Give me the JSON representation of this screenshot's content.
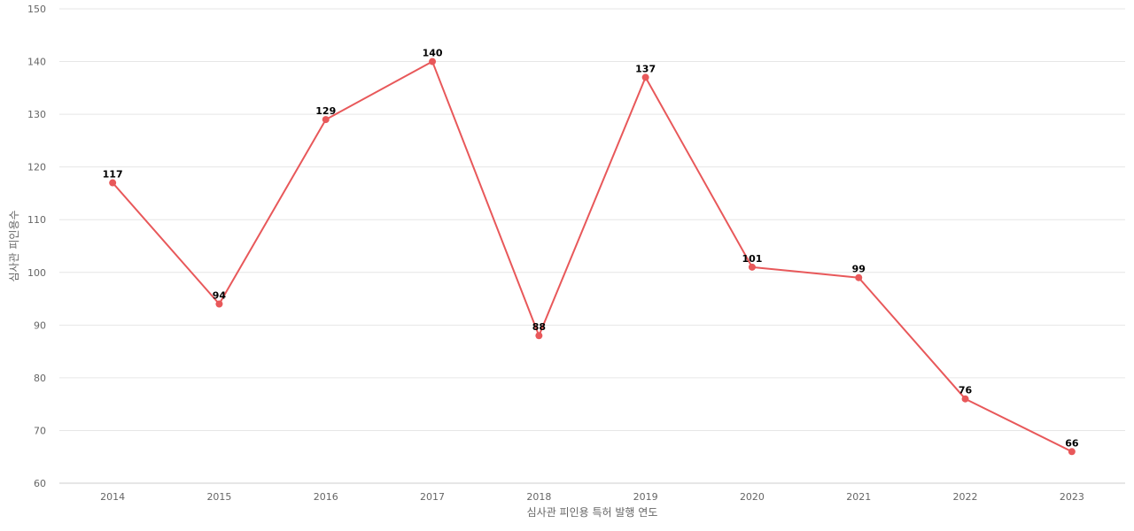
{
  "chart_data": {
    "type": "line",
    "categories": [
      "2014",
      "2015",
      "2016",
      "2017",
      "2018",
      "2019",
      "2020",
      "2021",
      "2022",
      "2023"
    ],
    "series": [
      {
        "values": [
          117,
          94,
          129,
          140,
          88,
          137,
          101,
          99,
          76,
          66
        ],
        "color": "#e8585a"
      }
    ],
    "xlabel": "심사관 피인용 특허 발행 연도",
    "ylabel": "심사관 피인용수",
    "ylim": [
      60,
      150
    ],
    "yticks": [
      60,
      70,
      80,
      90,
      100,
      110,
      120,
      130,
      140,
      150
    ],
    "grid": true,
    "data_labels": true
  }
}
